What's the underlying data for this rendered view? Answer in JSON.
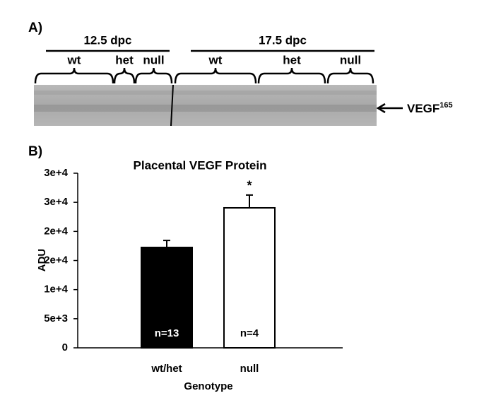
{
  "panel_a": {
    "label": "A)",
    "stages": [
      "12.5 dpc",
      "17.5 dpc"
    ],
    "groups": [
      "wt",
      "het",
      "null",
      "wt",
      "het",
      "null"
    ],
    "band_label": "VEGF",
    "band_superscript": "165"
  },
  "chart_data": {
    "type": "bar",
    "panel_label": "B)",
    "title": "Placental VEGF Protein",
    "y_label": "ADU",
    "x_label": "Genotype",
    "categories": [
      "wt/het",
      "null"
    ],
    "values": [
      17250,
      24050
    ],
    "errors": [
      1200,
      2200
    ],
    "colors": [
      "#000000",
      "#ffffff"
    ],
    "annotations": [
      "n=13",
      "n=4"
    ],
    "significance": [
      null,
      "*"
    ],
    "ylim": [
      0,
      30000
    ],
    "yticks": [
      0,
      {
        "value": 5000,
        "label": "5e+3"
      },
      {
        "value": 10000,
        "label": "1e+4"
      },
      {
        "value": 15000,
        "label": "2e+4"
      },
      {
        "value": 20000,
        "label": "2e+4"
      },
      {
        "value": 25000,
        "label": "3e+4"
      },
      {
        "value": 30000,
        "label": "3e+4"
      }
    ]
  }
}
